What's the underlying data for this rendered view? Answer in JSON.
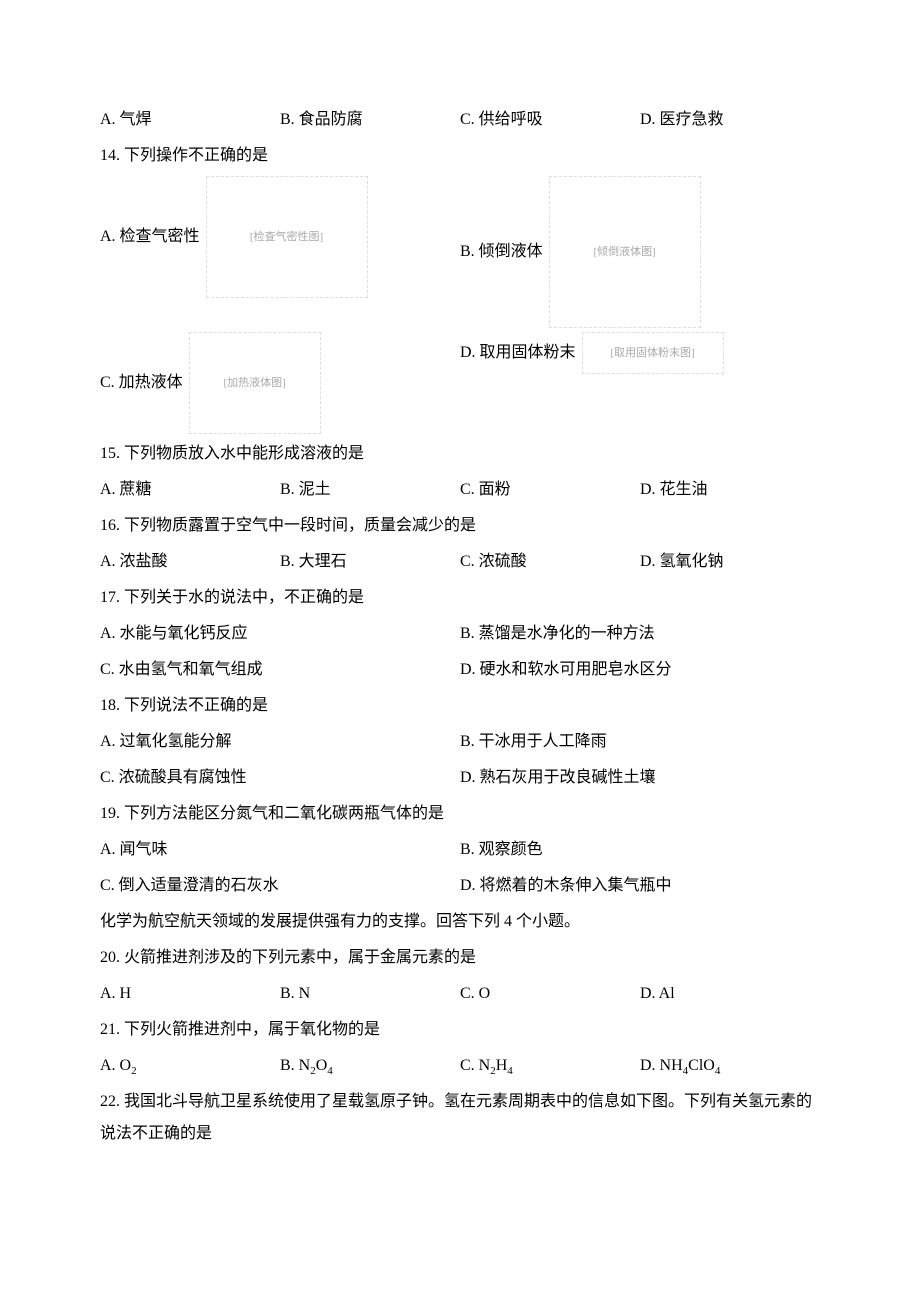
{
  "q13_options": {
    "a": "A. 气焊",
    "b": "B. 食品防腐",
    "c": "C. 供给呼吸",
    "d": "D. 医疗急救"
  },
  "q14": {
    "stem": "14. 下列操作不正确的是",
    "a": "A. 检查气密性",
    "b": "B. 倾倒液体",
    "c": "C. 加热液体",
    "d": "D. 取用固体粉末",
    "img_a_alt": "[检查气密性图]",
    "img_b_alt": "[倾倒液体图]",
    "img_c_alt": "[加热液体图]",
    "img_d_alt": "[取用固体粉末图]"
  },
  "q15": {
    "stem": "15. 下列物质放入水中能形成溶液的是",
    "a": "A. 蔗糖",
    "b": "B. 泥土",
    "c": "C. 面粉",
    "d": "D. 花生油"
  },
  "q16": {
    "stem": "16. 下列物质露置于空气中一段时间，质量会减少的是",
    "a": "A. 浓盐酸",
    "b": "B. 大理石",
    "c": "C. 浓硫酸",
    "d": "D. 氢氧化钠"
  },
  "q17": {
    "stem": "17. 下列关于水的说法中，不正确的是",
    "a": "A. 水能与氧化钙反应",
    "b": "B. 蒸馏是水净化的一种方法",
    "c": "C. 水由氢气和氧气组成",
    "d": "D. 硬水和软水可用肥皂水区分"
  },
  "q18": {
    "stem": "18. 下列说法不正确的是",
    "a": "A. 过氧化氢能分解",
    "b": "B. 干冰用于人工降雨",
    "c": "C. 浓硫酸具有腐蚀性",
    "d": "D. 熟石灰用于改良碱性土壤"
  },
  "q19": {
    "stem": "19. 下列方法能区分氮气和二氧化碳两瓶气体的是",
    "a": "A. 闻气味",
    "b": "B. 观察颜色",
    "c": "C. 倒入适量澄清的石灰水",
    "d": "D. 将燃着的木条伸入集气瓶中"
  },
  "passage": "化学为航空航天领域的发展提供强有力的支撑。回答下列 4 个小题。",
  "q20": {
    "stem": "20. 火箭推进剂涉及的下列元素中，属于金属元素的是",
    "a": "A. H",
    "b": "B. N",
    "c": "C. O",
    "d": "D. Al"
  },
  "q21": {
    "stem": "21. 下列火箭推进剂中，属于氧化物的是"
  },
  "q22": {
    "stem": "22. 我国北斗导航卫星系统使用了星载氢原子钟。氢在元素周期表中的信息如下图。下列有关氢元素的说法不正确的是"
  }
}
